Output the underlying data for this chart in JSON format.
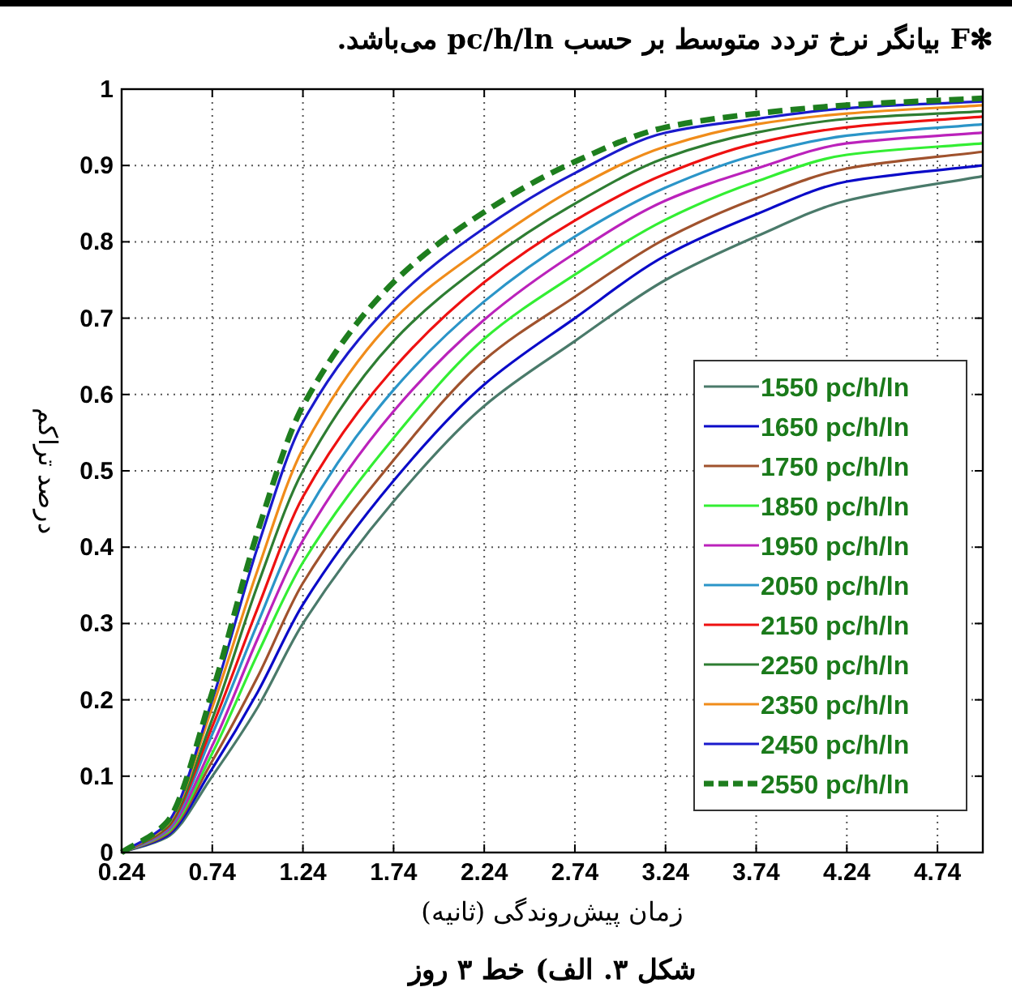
{
  "chart_data": {
    "type": "line",
    "title": "✻F بیانگر نرخ تردد متوسط بر حسب pc/h/ln می‌باشد.",
    "xlabel": "زمان پیش‌روندگی (ثانیه)",
    "ylabel": "درصد تراکم",
    "annotations": [
      "شکل ۳. الف) خط ۳ روز"
    ],
    "x": [
      0.24,
      0.49,
      0.74,
      0.99,
      1.24,
      1.74,
      2.24,
      2.74,
      3.24,
      3.74,
      4.24,
      4.99
    ],
    "xlim": [
      0.24,
      4.99
    ],
    "xticks": [
      0.24,
      0.74,
      1.24,
      1.74,
      2.24,
      2.74,
      3.24,
      3.74,
      4.24,
      4.74
    ],
    "ylim": [
      0,
      1
    ],
    "yticks": [
      0,
      0.1,
      0.2,
      0.3,
      0.4,
      0.5,
      0.6,
      0.7,
      0.8,
      0.9,
      1
    ],
    "grid": true,
    "legend": "bottom right",
    "line_style": "solid",
    "series": [
      {
        "name": "1550 pc/h/ln",
        "color": "#4a7a6a",
        "values": [
          0,
          0.02,
          0.1,
          0.19,
          0.3,
          0.46,
          0.585,
          0.67,
          0.75,
          0.807,
          0.854,
          0.886
        ]
      },
      {
        "name": "1650 pc/h/ln",
        "color": "#0a0ac8",
        "values": [
          0,
          0.022,
          0.11,
          0.21,
          0.325,
          0.487,
          0.613,
          0.7,
          0.782,
          0.836,
          0.879,
          0.9
        ]
      },
      {
        "name": "1750 pc/h/ln",
        "color": "#a0522d",
        "values": [
          0,
          0.024,
          0.12,
          0.23,
          0.353,
          0.514,
          0.645,
          0.728,
          0.804,
          0.857,
          0.896,
          0.918
        ]
      },
      {
        "name": "1850 pc/h/ln",
        "color": "#33ee33",
        "values": [
          0,
          0.026,
          0.13,
          0.26,
          0.38,
          0.543,
          0.673,
          0.757,
          0.829,
          0.879,
          0.914,
          0.929
        ]
      },
      {
        "name": "1950 pc/h/ln",
        "color": "#bb22bb",
        "values": [
          0,
          0.028,
          0.14,
          0.28,
          0.409,
          0.578,
          0.698,
          0.785,
          0.854,
          0.896,
          0.929,
          0.943
        ]
      },
      {
        "name": "2050 pc/h/ln",
        "color": "#2b95c8",
        "values": [
          0,
          0.03,
          0.155,
          0.3,
          0.437,
          0.606,
          0.722,
          0.807,
          0.871,
          0.914,
          0.939,
          0.954
        ]
      },
      {
        "name": "2150 pc/h/ln",
        "color": "#ee1111",
        "values": [
          0,
          0.032,
          0.165,
          0.32,
          0.466,
          0.634,
          0.747,
          0.828,
          0.889,
          0.929,
          0.95,
          0.964
        ]
      },
      {
        "name": "2250 pc/h/ln",
        "color": "#2e7d32",
        "values": [
          0,
          0.034,
          0.175,
          0.35,
          0.5,
          0.67,
          0.772,
          0.85,
          0.91,
          0.943,
          0.961,
          0.971
        ]
      },
      {
        "name": "2350 pc/h/ln",
        "color": "#f08c1a",
        "values": [
          0,
          0.036,
          0.19,
          0.37,
          0.529,
          0.698,
          0.793,
          0.87,
          0.925,
          0.954,
          0.968,
          0.979
        ]
      },
      {
        "name": "2450 pc/h/ln",
        "color": "#1a1acc",
        "values": [
          0,
          0.038,
          0.2,
          0.4,
          0.564,
          0.722,
          0.818,
          0.89,
          0.943,
          0.961,
          0.975,
          0.984
        ]
      },
      {
        "name": "2550 pc/h/ln",
        "color": "#1e7e1e",
        "line_style": "dashed",
        "values": [
          0,
          0.04,
          0.21,
          0.42,
          0.585,
          0.747,
          0.839,
          0.905,
          0.95,
          0.968,
          0.979,
          0.988
        ]
      }
    ]
  }
}
